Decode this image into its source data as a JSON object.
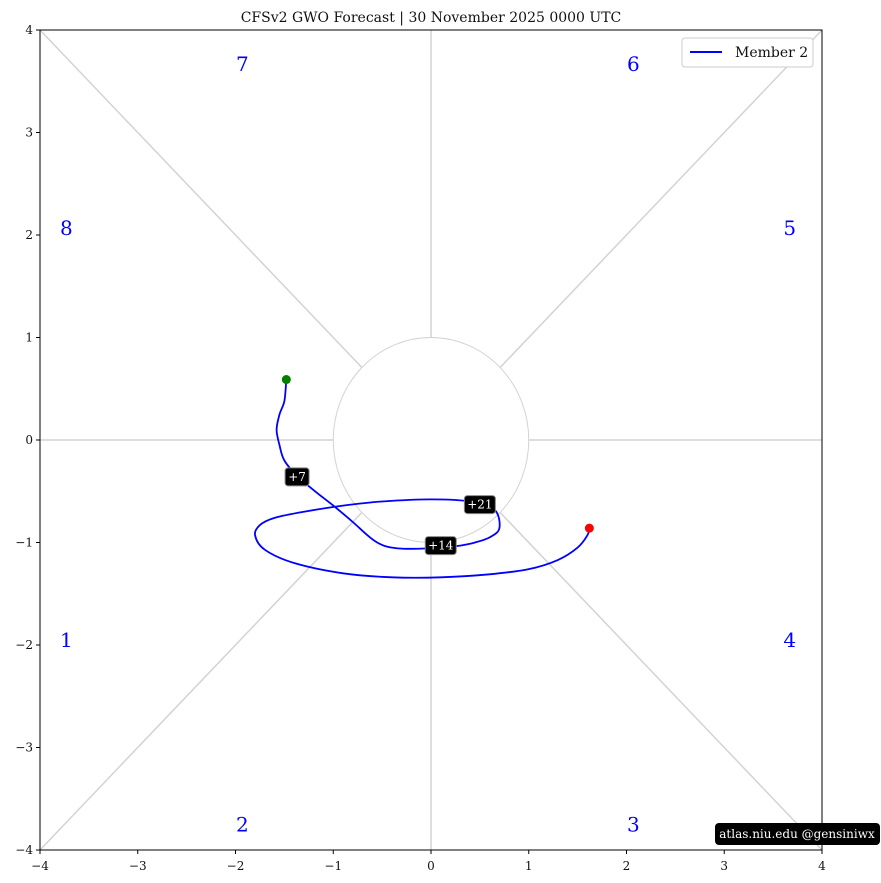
{
  "chart_data": {
    "type": "line",
    "title": "CFSv2 GWO Forecast   |   30  November  2025 0000 UTC",
    "xlim": [
      -4,
      4
    ],
    "ylim": [
      -4,
      4
    ],
    "x_ticks": [
      -4,
      -3,
      -2,
      -1,
      0,
      1,
      2,
      3,
      4
    ],
    "y_ticks": [
      -4,
      -3,
      -2,
      -1,
      0,
      1,
      2,
      3,
      4
    ],
    "x_tick_labels": [
      "−4",
      "−3",
      "−2",
      "−1",
      "0",
      "1",
      "2",
      "3",
      "4"
    ],
    "y_tick_labels": [
      "−4",
      "−3",
      "−2",
      "−1",
      "0",
      "1",
      "2",
      "3",
      "4"
    ],
    "legend": {
      "position": "top-right",
      "entries": [
        "Member 2"
      ]
    },
    "series": [
      {
        "name": "Member 2",
        "color": "#0000ff",
        "x": [
          1.62,
          1.6,
          1.5,
          1.3,
          1.0,
          0.6,
          0.1,
          -0.4,
          -0.9,
          -1.4,
          -1.7,
          -1.8,
          -1.75,
          -1.6,
          -1.3,
          -0.9,
          -0.5,
          0.0,
          0.4,
          0.65,
          0.7,
          0.6,
          0.45,
          0.3,
          0.1,
          -0.1,
          -0.3,
          -0.45,
          -0.55,
          -0.65,
          -0.8,
          -1.0,
          -1.2,
          -1.37,
          -1.5,
          -1.55,
          -1.58,
          -1.55,
          -1.5,
          -1.48
        ],
        "y": [
          -0.86,
          -0.93,
          -1.05,
          -1.17,
          -1.26,
          -1.31,
          -1.34,
          -1.34,
          -1.3,
          -1.2,
          -1.07,
          -0.93,
          -0.83,
          -0.76,
          -0.7,
          -0.64,
          -0.6,
          -0.58,
          -0.6,
          -0.68,
          -0.86,
          -0.95,
          -1.0,
          -1.03,
          -1.05,
          -1.06,
          -1.06,
          -1.04,
          -1.0,
          -0.93,
          -0.8,
          -0.64,
          -0.49,
          -0.35,
          -0.2,
          -0.05,
          0.1,
          0.25,
          0.38,
          0.59
        ]
      }
    ],
    "start_point": {
      "x": -1.48,
      "y": 0.59,
      "color": "#008000"
    },
    "end_point": {
      "x": 1.62,
      "y": -0.86,
      "color": "#ff0000"
    },
    "day_labels": [
      {
        "text": "+7",
        "x": -1.37,
        "y": -0.36
      },
      {
        "text": "+14",
        "x": 0.1,
        "y": -1.03
      },
      {
        "text": "+21",
        "x": 0.5,
        "y": -0.63
      }
    ],
    "phase_labels": [
      {
        "text": "1",
        "x": -3.73,
        "y": -1.95
      },
      {
        "text": "2",
        "x": -1.93,
        "y": -3.75
      },
      {
        "text": "3",
        "x": 2.07,
        "y": -3.75
      },
      {
        "text": "4",
        "x": 3.67,
        "y": -1.95
      },
      {
        "text": "5",
        "x": 3.67,
        "y": 2.07
      },
      {
        "text": "6",
        "x": 2.07,
        "y": 3.67
      },
      {
        "text": "7",
        "x": -1.93,
        "y": 3.67
      },
      {
        "text": "8",
        "x": -3.73,
        "y": 2.07
      }
    ],
    "center_circle_radius": 1,
    "grid": false,
    "guide_color": "#d3d3d3"
  },
  "credit": "atlas.niu.edu  @gensiniwx"
}
